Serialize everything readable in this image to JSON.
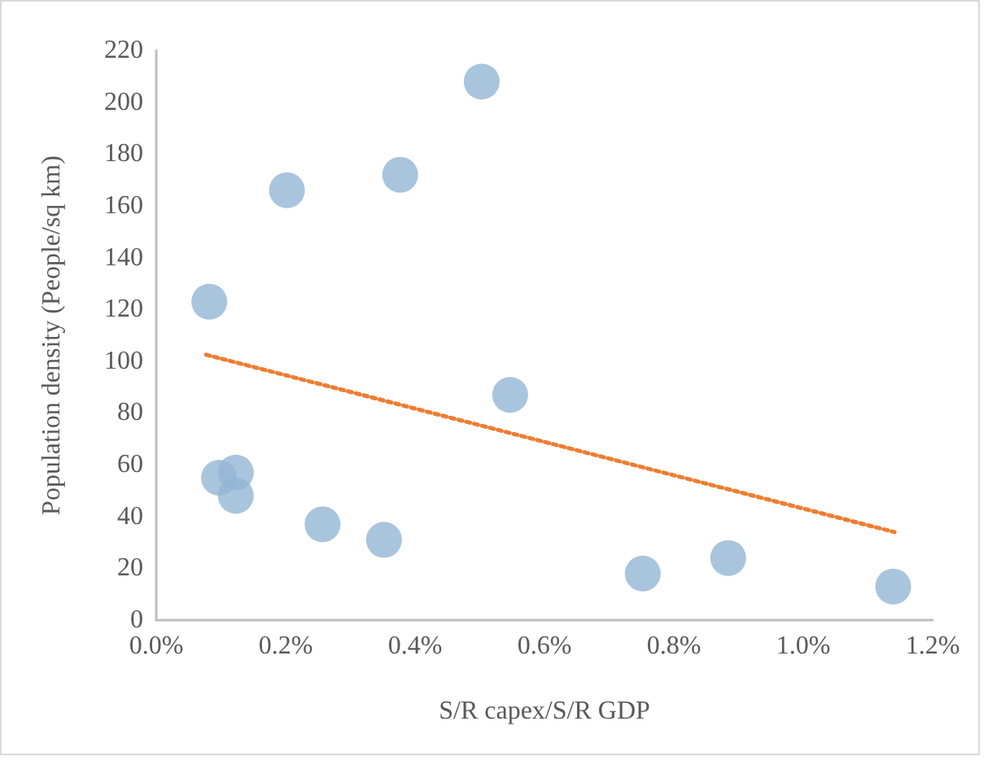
{
  "chart_data": {
    "type": "scatter",
    "xlabel": "S/R capex/S/R GDP",
    "ylabel": "Population density (People/sq km)",
    "marker": "circle",
    "grid": false,
    "xlim": [
      0,
      1.2
    ],
    "xticks": [
      {
        "value": 0,
        "label": "0.0%"
      },
      {
        "value": 0.2,
        "label": "0.2%"
      },
      {
        "value": 0.4,
        "label": "0.4%"
      },
      {
        "value": 0.6,
        "label": "0.6%"
      },
      {
        "value": 0.8,
        "label": "0.8%"
      },
      {
        "value": 1.0,
        "label": "1.0%"
      },
      {
        "value": 1.2,
        "label": "1.2%"
      }
    ],
    "ylim": [
      0,
      220
    ],
    "yticks": [
      0,
      20,
      40,
      60,
      80,
      100,
      120,
      140,
      160,
      180,
      200,
      220
    ],
    "series": [
      {
        "color": "#94b5d4",
        "x": [
          0.082,
          0.202,
          0.377,
          0.503,
          0.547,
          0.097,
          0.123,
          0.123,
          0.257,
          0.352,
          0.752,
          0.884,
          1.139
        ],
        "values": [
          123,
          166,
          172,
          208,
          87,
          55,
          57,
          48,
          37,
          31,
          18,
          24,
          13
        ]
      },
      {
        "type": "line",
        "color": "#ed7d31",
        "line_style": "dotted",
        "marker": "none",
        "x": [
          0.077,
          1.141
        ],
        "values": [
          102.5,
          34
        ]
      }
    ]
  }
}
